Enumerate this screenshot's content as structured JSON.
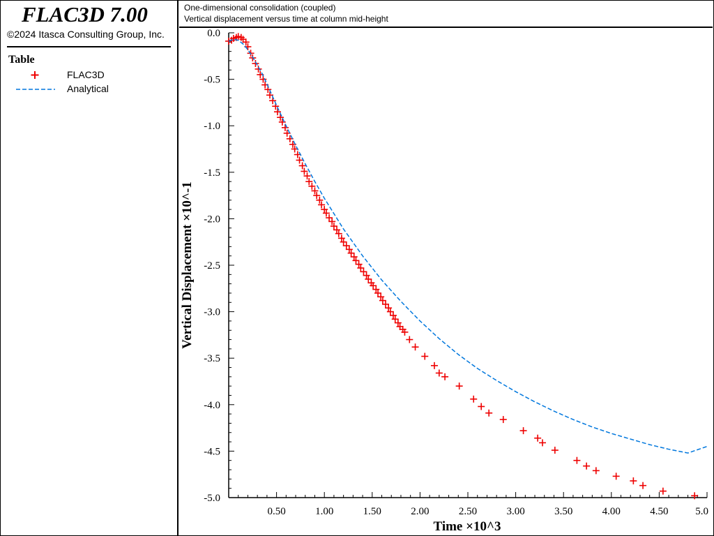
{
  "app": {
    "title": "FLAC3D 7.00",
    "copyright": "©2024 Itasca Consulting Group, Inc."
  },
  "legend": {
    "heading": "Table",
    "items": [
      {
        "label": "FLAC3D",
        "marker": "plus",
        "color": "#ee0000"
      },
      {
        "label": "Analytical",
        "marker": "dashed-line",
        "color": "#0077dd"
      }
    ]
  },
  "plot_header": {
    "line1": "One-dimensional consolidation (coupled)",
    "line2": "Vertical displacement versus time at column mid-height"
  },
  "chart_data": {
    "type": "scatter",
    "xlabel": "Time ×10^3",
    "ylabel": "Vertical Displacement ×10^-1",
    "xlim": [
      0,
      5.0
    ],
    "ylim": [
      -5.0,
      0.0
    ],
    "x_ticks": [
      "0.50",
      "1.00",
      "1.50",
      "2.00",
      "2.50",
      "3.00",
      "3.50",
      "4.00",
      "4.50",
      "5.0"
    ],
    "y_ticks": [
      "0.0",
      "-0.5",
      "-1.0",
      "-1.5",
      "-2.0",
      "-2.5",
      "-3.0",
      "-3.5",
      "-4.0",
      "-4.5",
      "-5.0"
    ],
    "grid": false,
    "legend_position": "left-panel",
    "series": [
      {
        "name": "FLAC3D",
        "marker": "plus",
        "color": "#ee0000",
        "x": [
          0.0,
          0.03,
          0.05,
          0.08,
          0.1,
          0.13,
          0.15,
          0.18,
          0.2,
          0.23,
          0.25,
          0.28,
          0.31,
          0.33,
          0.36,
          0.38,
          0.41,
          0.43,
          0.46,
          0.49,
          0.51,
          0.54,
          0.56,
          0.59,
          0.61,
          0.64,
          0.67,
          0.69,
          0.72,
          0.74,
          0.77,
          0.79,
          0.82,
          0.84,
          0.87,
          0.9,
          0.92,
          0.95,
          0.97,
          1.0,
          1.02,
          1.05,
          1.08,
          1.1,
          1.13,
          1.15,
          1.18,
          1.2,
          1.23,
          1.26,
          1.28,
          1.31,
          1.33,
          1.36,
          1.38,
          1.41,
          1.44,
          1.46,
          1.49,
          1.51,
          1.54,
          1.56,
          1.59,
          1.61,
          1.64,
          1.67,
          1.69,
          1.72,
          1.74,
          1.77,
          1.79,
          1.82,
          1.84,
          1.89,
          1.95,
          2.05,
          2.15,
          2.2,
          2.26,
          2.41,
          2.56,
          2.64,
          2.72,
          2.87,
          3.08,
          3.23,
          3.28,
          3.41,
          3.64,
          3.74,
          3.84,
          4.05,
          4.23,
          4.33,
          4.54,
          4.87
        ],
        "y": [
          -0.09,
          -0.08,
          -0.06,
          -0.05,
          -0.04,
          -0.05,
          -0.07,
          -0.1,
          -0.15,
          -0.22,
          -0.27,
          -0.33,
          -0.39,
          -0.45,
          -0.5,
          -0.56,
          -0.61,
          -0.67,
          -0.73,
          -0.79,
          -0.85,
          -0.91,
          -0.96,
          -1.02,
          -1.08,
          -1.14,
          -1.2,
          -1.25,
          -1.31,
          -1.37,
          -1.43,
          -1.49,
          -1.54,
          -1.6,
          -1.65,
          -1.7,
          -1.75,
          -1.8,
          -1.85,
          -1.9,
          -1.94,
          -1.99,
          -2.03,
          -2.08,
          -2.12,
          -2.16,
          -2.21,
          -2.25,
          -2.29,
          -2.33,
          -2.37,
          -2.41,
          -2.45,
          -2.49,
          -2.53,
          -2.57,
          -2.61,
          -2.65,
          -2.69,
          -2.72,
          -2.76,
          -2.8,
          -2.84,
          -2.88,
          -2.92,
          -2.96,
          -3.0,
          -3.04,
          -3.08,
          -3.12,
          -3.16,
          -3.19,
          -3.22,
          -3.3,
          -3.38,
          -3.48,
          -3.58,
          -3.66,
          -3.7,
          -3.8,
          -3.94,
          -4.02,
          -4.09,
          -4.16,
          -4.28,
          -4.36,
          -4.41,
          -4.49,
          -4.6,
          -4.66,
          -4.71,
          -4.77,
          -4.82,
          -4.87,
          -4.93,
          -4.98
        ]
      },
      {
        "name": "Analytical",
        "marker": "dashed-line",
        "color": "#0077dd",
        "x": [
          0.0,
          0.05,
          0.1,
          0.15,
          0.2,
          0.25,
          0.3,
          0.35,
          0.4,
          0.5,
          0.6,
          0.7,
          0.8,
          0.9,
          1.0,
          1.2,
          1.4,
          1.6,
          1.8,
          2.0,
          2.2,
          2.4,
          2.6,
          2.8,
          3.0,
          3.2,
          3.4,
          3.6,
          3.8,
          4.0,
          4.2,
          4.4,
          4.6,
          4.8,
          5.0
        ],
        "y": [
          -0.09,
          -0.07,
          -0.08,
          -0.12,
          -0.18,
          -0.26,
          -0.35,
          -0.44,
          -0.55,
          -0.78,
          -1.0,
          -1.21,
          -1.41,
          -1.6,
          -1.78,
          -2.11,
          -2.4,
          -2.66,
          -2.89,
          -3.1,
          -3.29,
          -3.46,
          -3.61,
          -3.74,
          -3.86,
          -3.97,
          -4.07,
          -4.16,
          -4.24,
          -4.31,
          -4.37,
          -4.43,
          -4.48,
          -4.52,
          -4.45
        ]
      }
    ]
  }
}
